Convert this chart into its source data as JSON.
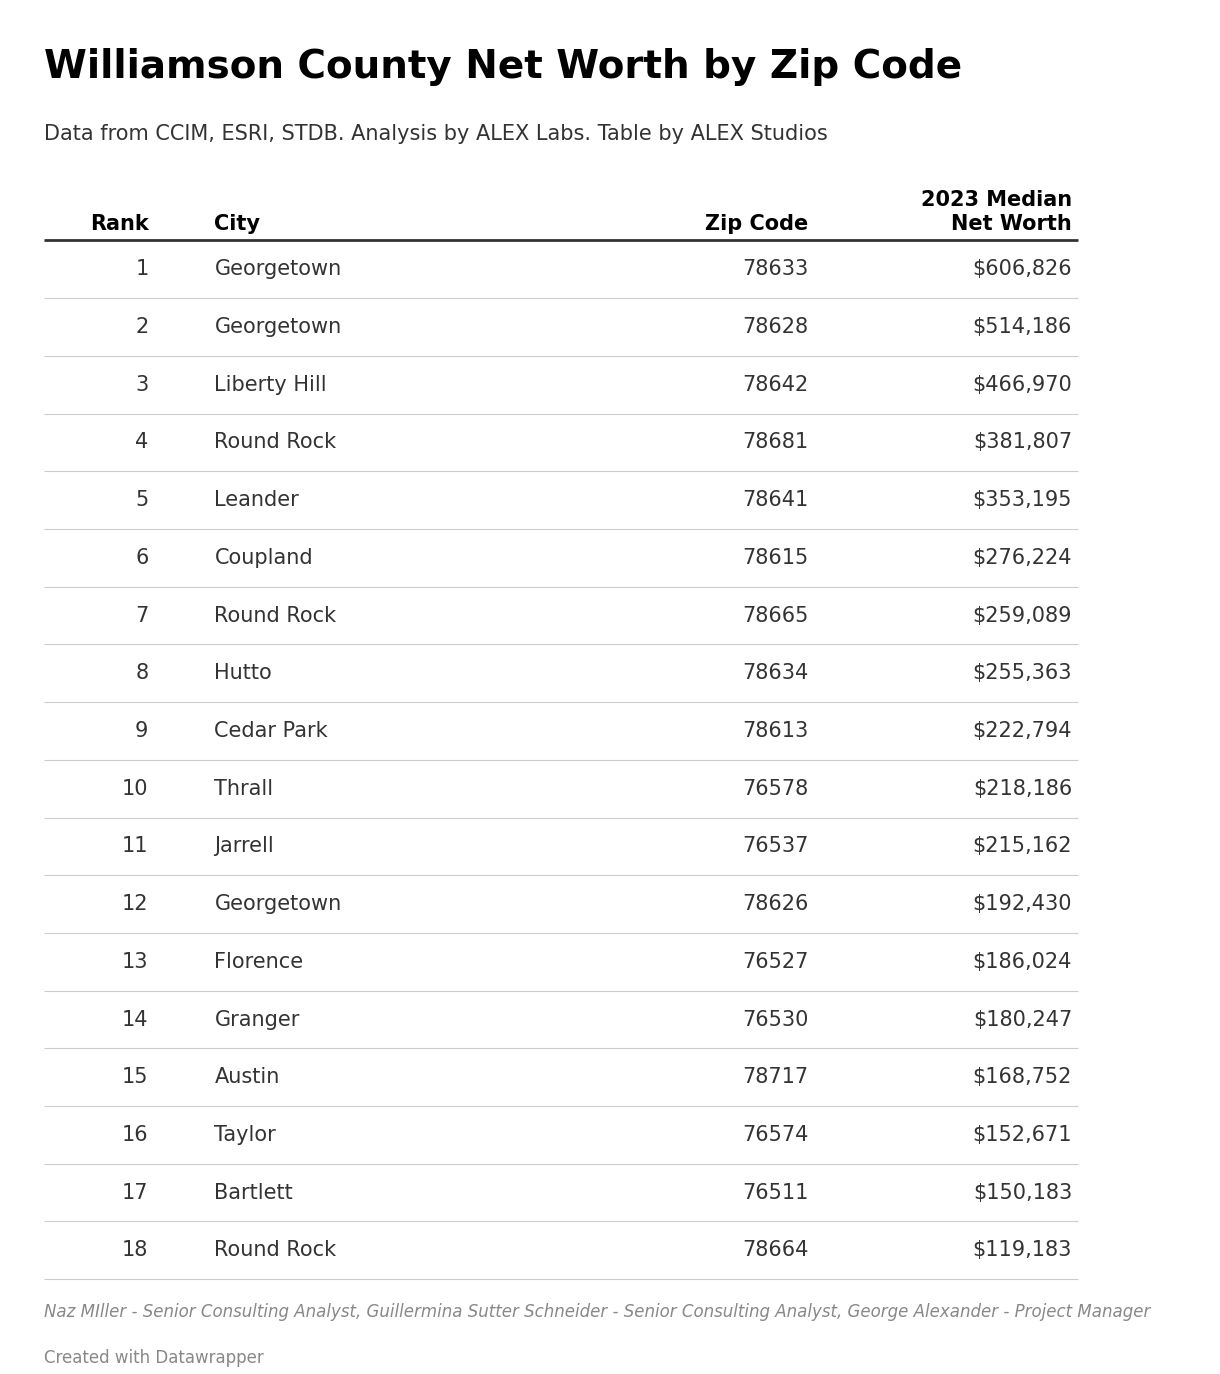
{
  "title": "Williamson County Net Worth by Zip Code",
  "subtitle": "Data from CCIM, ESRI, STDB. Analysis by ALEX Labs. Table by ALEX Studios",
  "footer_line1": "Naz MIller - Senior Consulting Analyst, Guillermina Sutter Schneider - Senior Consulting Analyst, George Alexander - Project Manager",
  "footer_line2": "Created with Datawrapper",
  "col_headers": [
    "Rank",
    "City",
    "Zip Code",
    "2023 Median\nNet Worth"
  ],
  "rows": [
    [
      1,
      "Georgetown",
      "78633",
      "$606,826"
    ],
    [
      2,
      "Georgetown",
      "78628",
      "$514,186"
    ],
    [
      3,
      "Liberty Hill",
      "78642",
      "$466,970"
    ],
    [
      4,
      "Round Rock",
      "78681",
      "$381,807"
    ],
    [
      5,
      "Leander",
      "78641",
      "$353,195"
    ],
    [
      6,
      "Coupland",
      "78615",
      "$276,224"
    ],
    [
      7,
      "Round Rock",
      "78665",
      "$259,089"
    ],
    [
      8,
      "Hutto",
      "78634",
      "$255,363"
    ],
    [
      9,
      "Cedar Park",
      "78613",
      "$222,794"
    ],
    [
      10,
      "Thrall",
      "76578",
      "$218,186"
    ],
    [
      11,
      "Jarrell",
      "76537",
      "$215,162"
    ],
    [
      12,
      "Georgetown",
      "78626",
      "$192,430"
    ],
    [
      13,
      "Florence",
      "76527",
      "$186,024"
    ],
    [
      14,
      "Granger",
      "76530",
      "$180,247"
    ],
    [
      15,
      "Austin",
      "78717",
      "$168,752"
    ],
    [
      16,
      "Taylor",
      "76574",
      "$152,671"
    ],
    [
      17,
      "Bartlett",
      "76511",
      "$150,183"
    ],
    [
      18,
      "Round Rock",
      "78664",
      "$119,183"
    ]
  ],
  "background_color": "#ffffff",
  "title_color": "#000000",
  "subtitle_color": "#333333",
  "header_text_color": "#000000",
  "row_text_color": "#333333",
  "footer_color": "#888888",
  "separator_color_dark": "#333333",
  "separator_color_light": "#cccccc",
  "title_fontsize": 28,
  "subtitle_fontsize": 15,
  "header_fontsize": 15,
  "row_fontsize": 15,
  "footer_fontsize": 12
}
